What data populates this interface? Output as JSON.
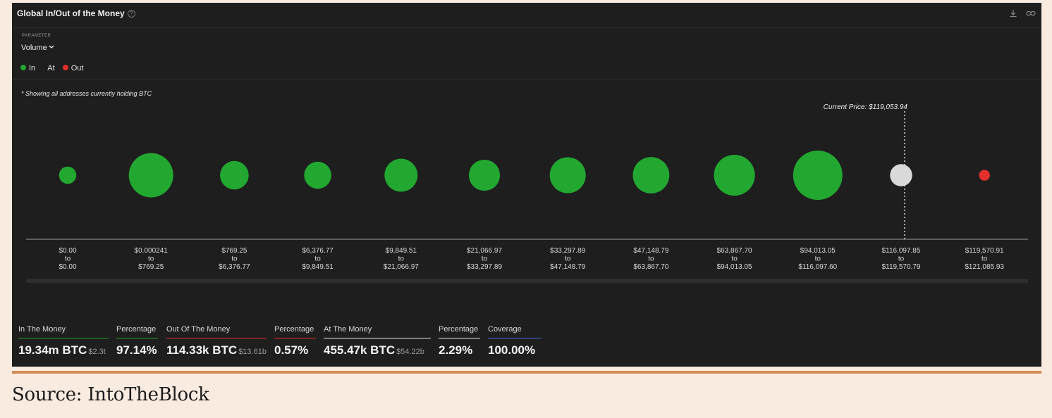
{
  "widget": {
    "title": "Global In/Out of the Money",
    "help_icon": "?",
    "parameter_label": "PARAMETER",
    "parameter_value": "Volume",
    "legend": [
      {
        "label": "In",
        "color": "#22a830"
      },
      {
        "label": "At",
        "color": ""
      },
      {
        "label": "Out",
        "color": "#e3302a"
      }
    ],
    "note": "* Showing all addresses currently holding BTC",
    "current_price_label": "Current Price: $119,053.94"
  },
  "chart_data": {
    "type": "bubble",
    "title": "Global In/Out of the Money",
    "current_price": 119053.94,
    "categories": [
      {
        "from": "$0.00",
        "to": "$0.00",
        "status": "in",
        "relative_size": 0.35
      },
      {
        "from": "$0.000241",
        "to": "$769.25",
        "status": "in",
        "relative_size": 0.9
      },
      {
        "from": "$769.25",
        "to": "$6,376.77",
        "status": "in",
        "relative_size": 0.58
      },
      {
        "from": "$6,376.77",
        "to": "$9,849.51",
        "status": "in",
        "relative_size": 0.55
      },
      {
        "from": "$9,849.51",
        "to": "$21,066.97",
        "status": "in",
        "relative_size": 0.67
      },
      {
        "from": "$21,066.97",
        "to": "$33,297.89",
        "status": "in",
        "relative_size": 0.63
      },
      {
        "from": "$33,297.89",
        "to": "$47,148.79",
        "status": "in",
        "relative_size": 0.73
      },
      {
        "from": "$47,148.79",
        "to": "$63,867.70",
        "status": "in",
        "relative_size": 0.74
      },
      {
        "from": "$63,867.70",
        "to": "$94,013.05",
        "status": "in",
        "relative_size": 0.83
      },
      {
        "from": "$94,013.05",
        "to": "$116,097.60",
        "status": "in",
        "relative_size": 1.0
      },
      {
        "from": "$116,097.85",
        "to": "$119,570.79",
        "status": "at",
        "relative_size": 0.45
      },
      {
        "from": "$119,570.91",
        "to": "$121,085.93",
        "status": "out",
        "relative_size": 0.22
      }
    ],
    "to_word": "to",
    "colors": {
      "in": "#22a830",
      "at": "#d9d9d9",
      "out": "#e3302a"
    }
  },
  "stats": [
    {
      "label": "In The Money",
      "value": "19.34m BTC",
      "sub": "$2.3t",
      "underline": "#22a830"
    },
    {
      "label": "Percentage",
      "value": "97.14%",
      "sub": "",
      "underline": "#22a830"
    },
    {
      "label": "Out Of The Money",
      "value": "114.33k BTC",
      "sub": "$13.61b",
      "underline": "#e3302a"
    },
    {
      "label": "Percentage",
      "value": "0.57%",
      "sub": "",
      "underline": "#e3302a"
    },
    {
      "label": "At The Money",
      "value": "455.47k BTC",
      "sub": "$54.22b",
      "underline": "#e6e6e6"
    },
    {
      "label": "Percentage",
      "value": "2.29%",
      "sub": "",
      "underline": "#e6e6e6"
    },
    {
      "label": "Coverage",
      "value": "100.00%",
      "sub": "",
      "underline": "#4a6ee0"
    }
  ],
  "source": "Source: IntoTheBlock"
}
